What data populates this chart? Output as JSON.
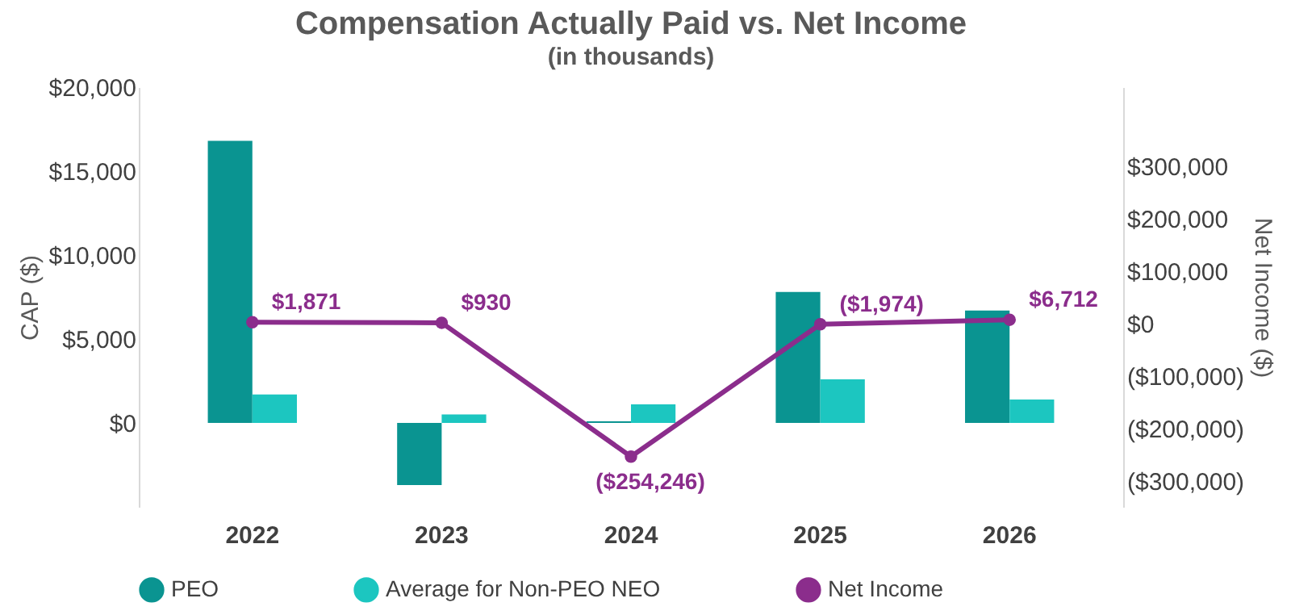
{
  "chart_data": {
    "type": "bar",
    "title": "Compensation Actually Paid vs. Net Income",
    "subtitle": "(in thousands)",
    "ylabel": "CAP ($)",
    "y2label": "Net Income ($)",
    "categories": [
      "2022",
      "2023",
      "2024",
      "2025",
      "2026"
    ],
    "series": [
      {
        "name": "PEO",
        "color": "#0a9491",
        "values": [
          16800,
          -3700,
          100,
          7800,
          6700
        ]
      },
      {
        "name": "Average for Non-PEO NEO",
        "color": "#1cc6c0",
        "values": [
          1700,
          500,
          1100,
          2600,
          1400
        ]
      },
      {
        "name": "Net Income",
        "type": "line",
        "axis": "y2",
        "color": "#8b2d8c",
        "marker": "circle",
        "line_style": "solid",
        "values": [
          1871,
          930,
          -254246,
          -1974,
          6712
        ],
        "value_labels": [
          "$1,871",
          "$930",
          "($254,246)",
          "($1,974)",
          "$6,712"
        ]
      }
    ],
    "ylim": [
      -5000,
      20000
    ],
    "yticks": [
      {
        "value": 0,
        "label": "$0"
      },
      {
        "value": 5000,
        "label": "$5,000"
      },
      {
        "value": 10000,
        "label": "$10,000"
      },
      {
        "value": 15000,
        "label": "$15,000"
      },
      {
        "value": 20000,
        "label": "$20,000"
      }
    ],
    "y2lim": [
      -350000,
      450000
    ],
    "y2ticks": [
      {
        "value": -300000,
        "label": "($300,000)"
      },
      {
        "value": -200000,
        "label": "($200,000)"
      },
      {
        "value": -100000,
        "label": "($100,000)"
      },
      {
        "value": 0,
        "label": "$0"
      },
      {
        "value": 100000,
        "label": "$100,000"
      },
      {
        "value": 200000,
        "label": "$200,000"
      },
      {
        "value": 300000,
        "label": "$300,000"
      }
    ],
    "grid": false,
    "legend": "bottom"
  }
}
